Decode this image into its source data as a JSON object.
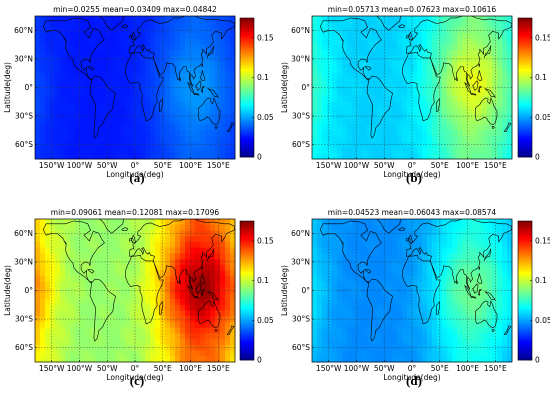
{
  "colormap": [
    "#00008f",
    "#0000ff",
    "#0080ff",
    "#00ffff",
    "#80ff80",
    "#ffff00",
    "#ff8000",
    "#ff0000",
    "#800000"
  ],
  "chart_data": [
    {
      "type": "heatmap",
      "panel_label": "(a)",
      "stats": {
        "min": "min=0.0255",
        "mean": "mean=0.03409",
        "max": "max=0.04842"
      },
      "xlabel": "Longitude(deg)",
      "ylabel": "Latitude(deg)",
      "xlim": [
        -180,
        180
      ],
      "ylim": [
        -75,
        75
      ],
      "x_ticks": [
        -150,
        -100,
        -50,
        0,
        50,
        100,
        150
      ],
      "x_tick_labels": [
        "150°W",
        "100°W",
        "50°W",
        "0°",
        "50°E",
        "100°E",
        "150°E"
      ],
      "y_ticks": [
        60,
        30,
        0,
        -30,
        -60
      ],
      "y_tick_labels": [
        "60°N",
        "30°N",
        "0°",
        "30°S",
        "60°S"
      ],
      "colorbar_range": [
        0,
        0.175
      ],
      "colorbar_ticks": [
        0,
        0.05,
        0.1,
        0.15
      ],
      "colorbar_tick_labels": [
        "0",
        "0.05",
        "0.1",
        "0.15"
      ],
      "grid": true,
      "value_field": {
        "min": 0.0255,
        "mean": 0.03409,
        "max": 0.04842,
        "peak_lon": 110,
        "peak_lat": 0
      }
    },
    {
      "type": "heatmap",
      "panel_label": "(b)",
      "stats": {
        "min": "min=0.05713",
        "mean": "mean=0.07623",
        "max": "max=0.10616"
      },
      "xlabel": "Longitude(deg)",
      "ylabel": "Latitude(deg)",
      "xlim": [
        -180,
        180
      ],
      "ylim": [
        -75,
        75
      ],
      "x_ticks": [
        -150,
        -100,
        -50,
        0,
        50,
        100,
        150
      ],
      "x_tick_labels": [
        "150°W",
        "100°W",
        "50°W",
        "0°",
        "50°E",
        "100°E",
        "150°E"
      ],
      "y_ticks": [
        60,
        30,
        0,
        -30,
        -60
      ],
      "y_tick_labels": [
        "60°N",
        "30°N",
        "0°",
        "30°S",
        "60°S"
      ],
      "colorbar_range": [
        0,
        0.175
      ],
      "colorbar_ticks": [
        0,
        0.05,
        0.1,
        0.15
      ],
      "colorbar_tick_labels": [
        "0",
        "0.05",
        "0.1",
        "0.15"
      ],
      "grid": true,
      "value_field": {
        "min": 0.05713,
        "mean": 0.07623,
        "max": 0.10616,
        "peak_lon": 110,
        "peak_lat": 5
      }
    },
    {
      "type": "heatmap",
      "panel_label": "(c)",
      "stats": {
        "min": "min=0.09061",
        "mean": "mean=0.12081",
        "max": "max=0.17096"
      },
      "xlabel": "Longitude(deg)",
      "ylabel": "Latitude(deg)",
      "xlim": [
        -180,
        180
      ],
      "ylim": [
        -75,
        75
      ],
      "x_ticks": [
        -150,
        -100,
        -50,
        0,
        50,
        100,
        150
      ],
      "x_tick_labels": [
        "150°W",
        "100°W",
        "50°W",
        "0°",
        "50°E",
        "100°E",
        "150°E"
      ],
      "y_ticks": [
        60,
        30,
        0,
        -30,
        -60
      ],
      "y_tick_labels": [
        "60°N",
        "30°N",
        "0°",
        "30°S",
        "60°S"
      ],
      "colorbar_range": [
        0,
        0.175
      ],
      "colorbar_ticks": [
        0,
        0.05,
        0.1,
        0.15
      ],
      "colorbar_tick_labels": [
        "0",
        "0.05",
        "0.1",
        "0.15"
      ],
      "grid": true,
      "value_field": {
        "min": 0.09061,
        "mean": 0.12081,
        "max": 0.17096,
        "peak_lon": 120,
        "peak_lat": 5
      }
    },
    {
      "type": "heatmap",
      "panel_label": "(d)",
      "stats": {
        "min": "min=0.04523",
        "mean": "mean=0.06043",
        "max": "max=0.08574"
      },
      "xlabel": "Longitude(deg)",
      "ylabel": "Latitude(deg)",
      "xlim": [
        -180,
        180
      ],
      "ylim": [
        -75,
        75
      ],
      "x_ticks": [
        -150,
        -100,
        -50,
        0,
        50,
        100,
        150
      ],
      "x_tick_labels": [
        "150°W",
        "100°W",
        "50°W",
        "0°",
        "50°E",
        "100°E",
        "150°E"
      ],
      "y_ticks": [
        60,
        30,
        0,
        -30,
        -60
      ],
      "y_tick_labels": [
        "60°N",
        "30°N",
        "0°",
        "30°S",
        "60°S"
      ],
      "colorbar_range": [
        0,
        0.175
      ],
      "colorbar_ticks": [
        0,
        0.05,
        0.1,
        0.15
      ],
      "colorbar_tick_labels": [
        "0",
        "0.05",
        "0.1",
        "0.15"
      ],
      "grid": true,
      "value_field": {
        "min": 0.04523,
        "mean": 0.06043,
        "max": 0.08574,
        "peak_lon": 110,
        "peak_lat": 0
      }
    }
  ]
}
